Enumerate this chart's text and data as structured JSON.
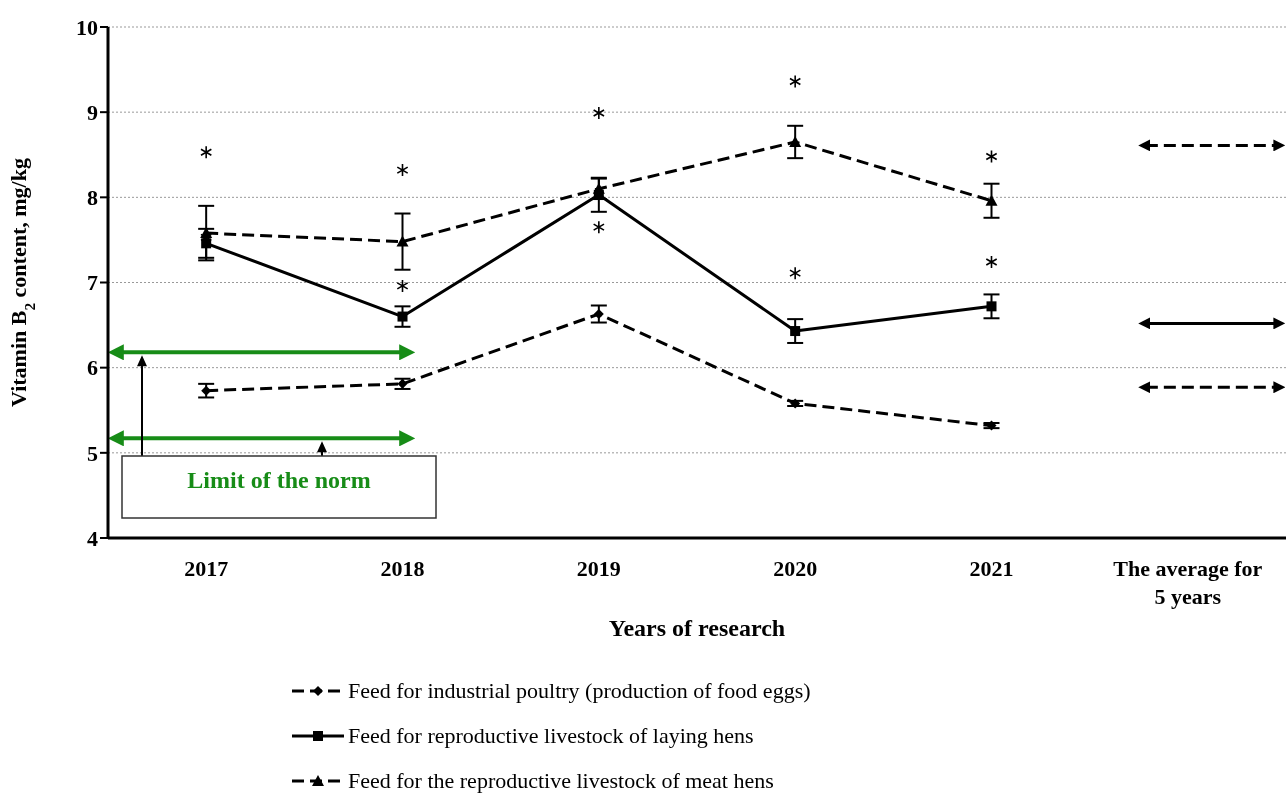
{
  "chart_data": {
    "type": "line",
    "xlabel": "Years of research",
    "ylabel": "Vitamin B$_{2}$ content, mg/kg",
    "categories": [
      "2017",
      "2018",
      "2019",
      "2020",
      "2021",
      "The average for 5 years"
    ],
    "ylim": [
      4,
      10
    ],
    "yticks": [
      4,
      5,
      6,
      7,
      8,
      9,
      10
    ],
    "grid": "y",
    "legend": "bottom",
    "series": [
      {
        "name": "Feed for industrial poultry (production of food eggs)",
        "color": "#000000",
        "marker": "diamond",
        "line_style": "dashed",
        "values": [
          5.73,
          5.81,
          6.63,
          5.58,
          5.32,
          null
        ],
        "errors": [
          0.08,
          0.06,
          0.1,
          0.03,
          0.03,
          null
        ]
      },
      {
        "name": "Feed for reproductive livestock of laying hens",
        "color": "#000000",
        "marker": "square",
        "line_style": "solid",
        "values": [
          7.46,
          6.6,
          8.03,
          6.43,
          6.72,
          null
        ],
        "errors": [
          0.17,
          0.12,
          0.2,
          0.14,
          0.14,
          null
        ]
      },
      {
        "name": "Feed for the reproductive livestock of meat hens",
        "color": "#000000",
        "marker": "triangle",
        "line_style": "dashed",
        "values": [
          7.58,
          7.48,
          8.1,
          8.65,
          7.96,
          null
        ],
        "errors": [
          0.32,
          0.33,
          0.12,
          0.19,
          0.2,
          null
        ]
      },
      {
        "type": "scatter",
        "color": "#000000",
        "marker": "cross",
        "values": [
          8.53,
          8.32,
          8.99,
          9.36,
          8.48,
          null
        ]
      },
      {
        "type": "scatter",
        "color": "#000000",
        "marker": "cross",
        "values": [
          7.53,
          6.96,
          7.65,
          7.11,
          7.24,
          null
        ]
      }
    ],
    "ref_lines": [
      {
        "axis": "y",
        "value": 6.18,
        "color": "#178c17"
      },
      {
        "axis": "y",
        "value": 5.17,
        "color": "#178c17"
      },
      {
        "axis": "y",
        "value": 8.61,
        "color": "#000000",
        "line_style": "dashed"
      },
      {
        "axis": "y",
        "value": 6.52,
        "color": "#000000",
        "line_style": "solid"
      },
      {
        "axis": "y",
        "value": 5.77,
        "color": "#000000",
        "line_style": "dashed"
      }
    ],
    "annotations": [
      {
        "text": "Limit of the norm",
        "y": 5.17
      }
    ]
  }
}
